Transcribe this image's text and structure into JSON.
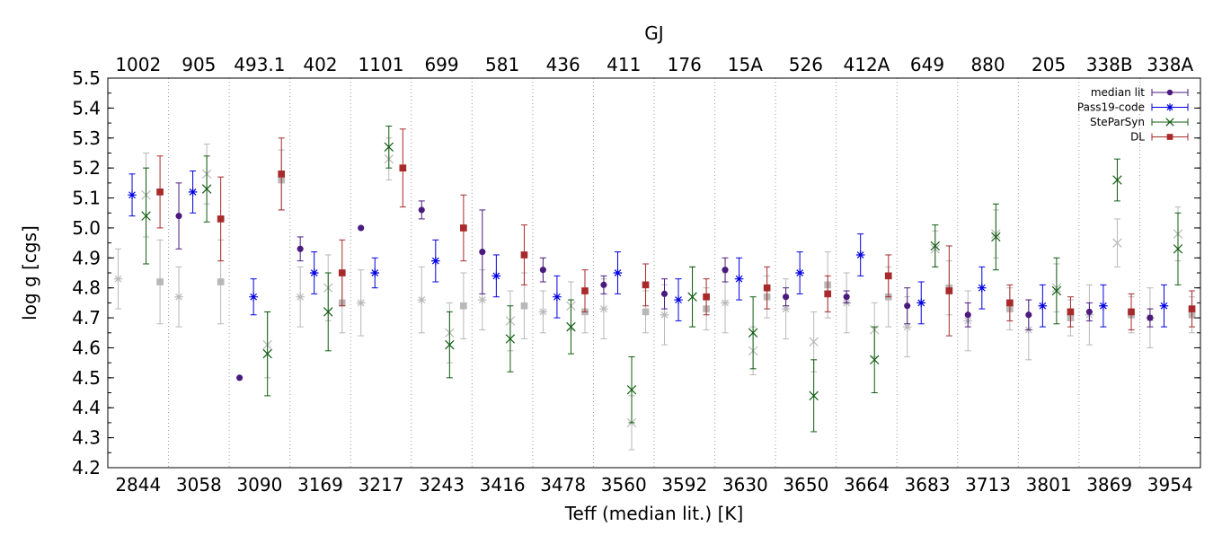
{
  "chart_data": {
    "type": "scatter",
    "title": "",
    "top_axis_label": "GJ",
    "xlabel": "Teff (median lit.) [K]",
    "ylabel": "log g [cgs]",
    "ylim": [
      4.2,
      5.5
    ],
    "y_ticks": [
      "4.2",
      "4.3",
      "4.4",
      "4.5",
      "4.6",
      "4.7",
      "4.8",
      "4.9",
      "5.0",
      "5.1",
      "5.2",
      "5.3",
      "5.4",
      "5.5"
    ],
    "categories_bottom": [
      "2844",
      "3058",
      "3090",
      "3169",
      "3217",
      "3243",
      "3416",
      "3478",
      "3560",
      "3592",
      "3630",
      "3650",
      "3664",
      "3683",
      "3713",
      "3801",
      "3869",
      "3954"
    ],
    "categories_top": [
      "1002",
      "905",
      "493.1",
      "402",
      "1101",
      "699",
      "581",
      "436",
      "411",
      "176",
      "15A",
      "526",
      "412A",
      "649",
      "880",
      "205",
      "338B",
      "338A"
    ],
    "legend_position": "top-right",
    "grid": "vertical dotted separators between stars",
    "series": [
      {
        "name": "median lit",
        "color": "#4b1a7e",
        "marker": "circle",
        "values": [
          null,
          5.04,
          4.5,
          4.93,
          5.0,
          5.06,
          4.92,
          4.86,
          4.81,
          4.78,
          4.86,
          4.77,
          4.77,
          4.74,
          4.71,
          4.71,
          4.72,
          4.7
        ],
        "errors": [
          null,
          0.11,
          0,
          0.04,
          0,
          0.03,
          0.14,
          0.04,
          0.03,
          0.05,
          0.04,
          0.03,
          0.02,
          0.06,
          0.04,
          0.05,
          0.03,
          0.03
        ]
      },
      {
        "name": "Pass19-code",
        "color": "#0000e0",
        "marker": "star",
        "values": [
          5.11,
          5.12,
          4.77,
          4.85,
          4.85,
          4.89,
          4.84,
          4.77,
          4.85,
          4.76,
          4.83,
          4.85,
          4.91,
          4.75,
          4.8,
          4.74,
          4.74,
          4.74
        ],
        "errors": [
          0.07,
          0.07,
          0.06,
          0.07,
          0.05,
          0.07,
          0.07,
          0.07,
          0.07,
          0.07,
          0.07,
          0.07,
          0.07,
          0.07,
          0.07,
          0.07,
          0.07,
          0.07
        ]
      },
      {
        "name": "SteParSyn",
        "color": "#0f5c0f",
        "marker": "x",
        "values": [
          5.04,
          5.13,
          4.58,
          4.72,
          5.27,
          4.61,
          4.63,
          4.67,
          4.46,
          4.77,
          4.65,
          4.44,
          4.56,
          4.94,
          4.97,
          4.79,
          5.16,
          4.93
        ],
        "errors": [
          0.16,
          0.11,
          0.14,
          0.13,
          0.07,
          0.11,
          0.11,
          0.09,
          0.11,
          0.1,
          0.12,
          0.12,
          0.11,
          0.07,
          0.11,
          0.11,
          0.07,
          0.12
        ]
      },
      {
        "name": "DL",
        "color": "#a82a2a",
        "marker": "square",
        "values": [
          5.12,
          5.03,
          5.18,
          4.85,
          5.2,
          5.0,
          4.91,
          4.79,
          4.81,
          4.77,
          4.8,
          4.78,
          4.84,
          4.79,
          4.75,
          4.72,
          4.72,
          4.73
        ],
        "errors": [
          0.12,
          0.14,
          0.12,
          0.11,
          0.13,
          0.11,
          0.1,
          0.07,
          0.07,
          0.06,
          0.07,
          0.06,
          0.07,
          0.15,
          0.06,
          0.05,
          0.06,
          0.06
        ]
      },
      {
        "name": "",
        "color": "#b8b8b8",
        "marker": "star",
        "values": [
          4.83,
          4.77,
          null,
          4.77,
          4.75,
          4.76,
          4.76,
          4.72,
          4.73,
          4.71,
          4.75,
          4.73,
          4.75,
          4.67,
          4.69,
          4.66,
          4.71,
          4.7
        ],
        "errors": [
          0.1,
          0.1,
          null,
          0.1,
          0.11,
          0.11,
          0.1,
          0.07,
          0.1,
          0.1,
          0.1,
          0.1,
          0.1,
          0.1,
          0.1,
          0.1,
          0.1,
          0.1
        ]
      },
      {
        "name": "",
        "color": "#b8b8b8",
        "marker": "square",
        "values": [
          4.82,
          4.82,
          5.16,
          4.75,
          null,
          4.74,
          4.74,
          4.72,
          4.72,
          4.73,
          4.77,
          4.81,
          4.77,
          4.8,
          4.73,
          4.7,
          4.71,
          4.71
        ],
        "errors": [
          0.14,
          0.14,
          0.1,
          0.1,
          null,
          0.11,
          0.11,
          0.07,
          0.07,
          0.07,
          0.07,
          0.11,
          0.1,
          0.09,
          0.07,
          0.06,
          0.06,
          0.06
        ]
      },
      {
        "name": "",
        "color": "#b8b8b8",
        "marker": "x",
        "values": [
          5.11,
          5.18,
          4.61,
          4.8,
          5.23,
          4.65,
          4.69,
          4.74,
          4.35,
          4.77,
          4.59,
          4.62,
          4.66,
          4.93,
          4.98,
          4.8,
          4.95,
          4.98
        ],
        "errors": [
          0.14,
          0.1,
          0.11,
          0.11,
          0.07,
          0.1,
          0.1,
          0.08,
          0.09,
          0.1,
          0.08,
          0.1,
          0.09,
          0.06,
          0.08,
          0.08,
          0.08,
          0.09
        ]
      }
    ]
  }
}
